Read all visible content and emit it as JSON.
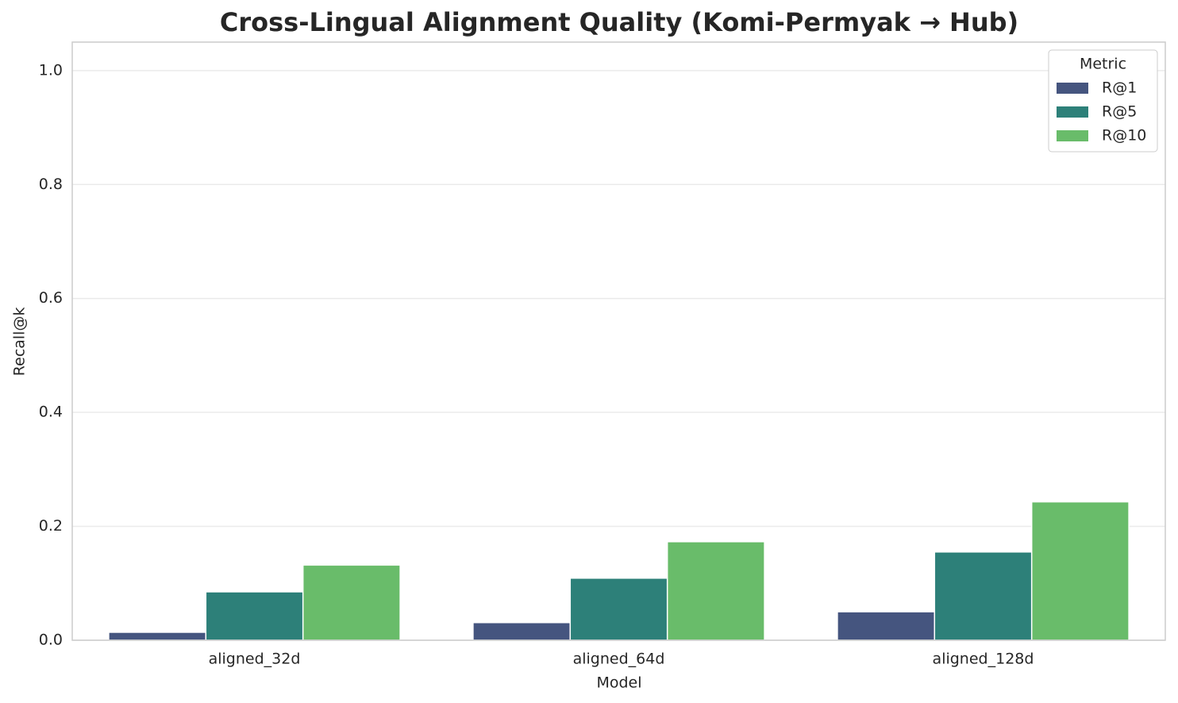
{
  "chart_data": {
    "type": "bar",
    "title": "Cross-Lingual Alignment Quality (Komi-Permyak → Hub)",
    "x_label": "Model",
    "y_label": "Recall@k",
    "categories": [
      "aligned_32d",
      "aligned_64d",
      "aligned_128d"
    ],
    "series": [
      {
        "name": "R@1",
        "color": "#45557f",
        "values": [
          0.014,
          0.031,
          0.05
        ]
      },
      {
        "name": "R@5",
        "color": "#2d8079",
        "values": [
          0.085,
          0.109,
          0.155
        ]
      },
      {
        "name": "R@10",
        "color": "#69bc6a",
        "values": [
          0.132,
          0.173,
          0.243
        ]
      }
    ],
    "legend_title": "Metric",
    "legend": "upper right",
    "ylim": [
      0,
      1.05
    ],
    "yticks": [
      {
        "value": 0,
        "label": "0.0"
      },
      0.2,
      0.4,
      0.6,
      0.8,
      {
        "value": 1,
        "label": "1.0"
      }
    ],
    "grid": true
  }
}
